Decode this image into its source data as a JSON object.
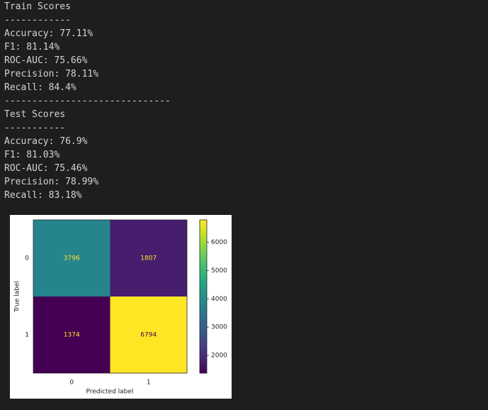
{
  "output_lines": [
    "Train Scores",
    "------------",
    "Accuracy: 77.11%",
    "F1: 81.14%",
    "ROC-AUC: 75.66%",
    "Precision: 78.11%",
    "Recall: 84.4%",
    "------------------------------",
    "Test Scores",
    "-----------",
    "Accuracy: 76.9%",
    "F1: 81.03%",
    "ROC-AUC: 75.46%",
    "Precision: 78.99%",
    "Recall: 83.18%"
  ],
  "chart_data": {
    "type": "heatmap",
    "xlabel": "Predicted label",
    "ylabel": "True label",
    "x_categories": [
      "0",
      "1"
    ],
    "y_categories": [
      "0",
      "1"
    ],
    "values": [
      [
        3796,
        1807
      ],
      [
        1374,
        6794
      ]
    ],
    "colormap": "viridis",
    "clim": [
      1374,
      6794
    ],
    "cticks": [
      2000,
      3000,
      4000,
      5000,
      6000
    ]
  }
}
